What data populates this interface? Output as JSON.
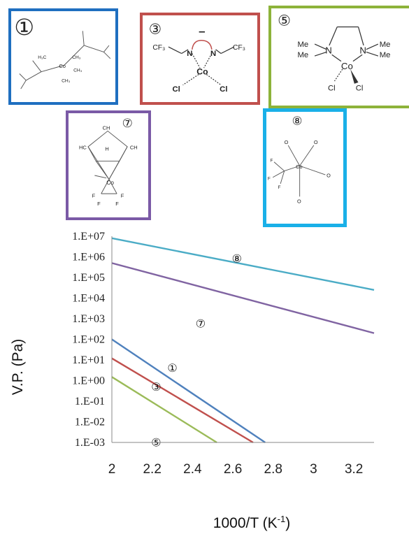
{
  "structures": [
    {
      "id": "s1",
      "number": "①",
      "color": "#1f6fc0",
      "atoms": [
        "H₃C",
        "CH₃",
        "CH₃",
        "CH₃",
        "Co"
      ]
    },
    {
      "id": "s3",
      "number": "③",
      "color": "#c0504d",
      "atoms": [
        "CF₃",
        "CF₃",
        "N",
        "N",
        "Co",
        "Cl",
        "Cl",
        "–"
      ]
    },
    {
      "id": "s5",
      "number": "⑤",
      "color": "#8db33a",
      "atoms": [
        "Me",
        "Me",
        "N",
        "N",
        "Me",
        "Me",
        "Co",
        "Cl",
        "Cl"
      ]
    },
    {
      "id": "s7",
      "number": "⑦",
      "color": "#7b5aa6",
      "atoms": [
        "CH",
        "HC",
        "CH",
        "H",
        "Co",
        "F",
        "F",
        "F",
        "F"
      ]
    },
    {
      "id": "s8",
      "number": "⑧",
      "color": "#1ab0e8",
      "atoms": [
        "Co",
        "O",
        "O",
        "O",
        "O",
        "F",
        "F",
        "F"
      ]
    }
  ],
  "chart_data": {
    "type": "line",
    "ylabel": "V.P. (Pa)",
    "xlabel_main": "1000/T (K",
    "xlabel_sup": "-1",
    "xlabel_end": ")",
    "y_scale": "log",
    "xlim": [
      2,
      3.3
    ],
    "ylim": [
      0.001,
      10000000
    ],
    "x_ticks": [
      "2",
      "2.2",
      "2.4",
      "2.6",
      "2.8",
      "3",
      "3.2"
    ],
    "x_tick_values": [
      2,
      2.2,
      2.4,
      2.6,
      2.8,
      3,
      3.2
    ],
    "y_ticks": [
      "1.E+07",
      "1.E+06",
      "1.E+05",
      "1.E+04",
      "1.E+03",
      "1.E+02",
      "1.E+01",
      "1.E+00",
      "1.E-01",
      "1.E-02",
      "1.E-03"
    ],
    "grid": false,
    "series": [
      {
        "name": "⑧",
        "color": "#4bacc6",
        "x": [
          2,
          3.3
        ],
        "y": [
          8000000,
          25000
        ],
        "label_x": 2.62,
        "label_y": 1000000
      },
      {
        "name": "⑦",
        "color": "#8064a2",
        "x": [
          2,
          3.3
        ],
        "y": [
          500000,
          200
        ],
        "label_x": 2.44,
        "label_y": 700
      },
      {
        "name": "①",
        "color": "#4f81bd",
        "x": [
          2,
          2.76
        ],
        "y": [
          100,
          0.001
        ],
        "label_x": 2.3,
        "label_y": 5
      },
      {
        "name": "③",
        "color": "#c0504d",
        "x": [
          2,
          2.7
        ],
        "y": [
          12,
          0.001
        ],
        "label_x": 2.22,
        "label_y": 0.6
      },
      {
        "name": "⑤",
        "color": "#9bbb59",
        "x": [
          2,
          2.52
        ],
        "y": [
          1.5,
          0.001
        ],
        "label_x": 2.22,
        "label_y": 0.0012
      }
    ]
  }
}
